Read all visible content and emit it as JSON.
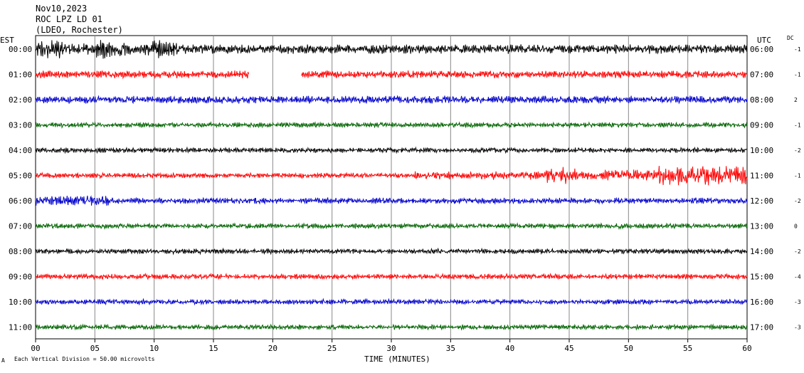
{
  "header": {
    "date": "Nov10,2023",
    "station": "ROC LPZ LD 01",
    "location": "(LDEO, Rochester)"
  },
  "left_axis_label": "EST",
  "right_axis_label": "UTC",
  "dc_label": "DC",
  "footer": {
    "scale_note": "Each Vertical Division =   50.00 microvolts",
    "corner_mark": "A"
  },
  "chart_data": {
    "type": "line",
    "title": "",
    "xlabel": "TIME (MINUTES)",
    "ylabel": "",
    "xlim": [
      0,
      60
    ],
    "x_ticks": [
      "00",
      "05",
      "10",
      "15",
      "20",
      "25",
      "30",
      "35",
      "40",
      "45",
      "50",
      "55",
      "60"
    ],
    "x_tick_values": [
      0,
      5,
      10,
      15,
      20,
      25,
      30,
      35,
      40,
      45,
      50,
      55,
      60
    ],
    "grid": true,
    "series": [
      {
        "est": "00:00",
        "utc": "06:00",
        "dc": "-1",
        "color": "#000000",
        "amplitude": "high-early",
        "gaps_minutes": []
      },
      {
        "est": "01:00",
        "utc": "07:00",
        "dc": "-1",
        "color": "#ff0000",
        "amplitude": "medium",
        "gaps_minutes": [
          [
            18.0,
            22.4
          ]
        ]
      },
      {
        "est": "02:00",
        "utc": "08:00",
        "dc": "2",
        "color": "#0000cc",
        "amplitude": "medium",
        "gaps_minutes": []
      },
      {
        "est": "03:00",
        "utc": "09:00",
        "dc": "-1",
        "color": "#006400",
        "amplitude": "low",
        "gaps_minutes": []
      },
      {
        "est": "04:00",
        "utc": "10:00",
        "dc": "-2",
        "color": "#000000",
        "amplitude": "low",
        "gaps_minutes": []
      },
      {
        "est": "05:00",
        "utc": "11:00",
        "dc": "-1",
        "color": "#ff0000",
        "amplitude": "high-late",
        "gaps_minutes": []
      },
      {
        "est": "06:00",
        "utc": "12:00",
        "dc": "-2",
        "color": "#0000cc",
        "amplitude": "medium-early",
        "gaps_minutes": []
      },
      {
        "est": "07:00",
        "utc": "13:00",
        "dc": "0",
        "color": "#006400",
        "amplitude": "low",
        "gaps_minutes": []
      },
      {
        "est": "08:00",
        "utc": "14:00",
        "dc": "-2",
        "color": "#000000",
        "amplitude": "low",
        "gaps_minutes": []
      },
      {
        "est": "09:00",
        "utc": "15:00",
        "dc": "-4",
        "color": "#ff0000",
        "amplitude": "low",
        "gaps_minutes": []
      },
      {
        "est": "10:00",
        "utc": "16:00",
        "dc": "-3",
        "color": "#0000cc",
        "amplitude": "low",
        "gaps_minutes": []
      },
      {
        "est": "11:00",
        "utc": "17:00",
        "dc": "-3",
        "color": "#006400",
        "amplitude": "low",
        "gaps_minutes": []
      }
    ]
  }
}
